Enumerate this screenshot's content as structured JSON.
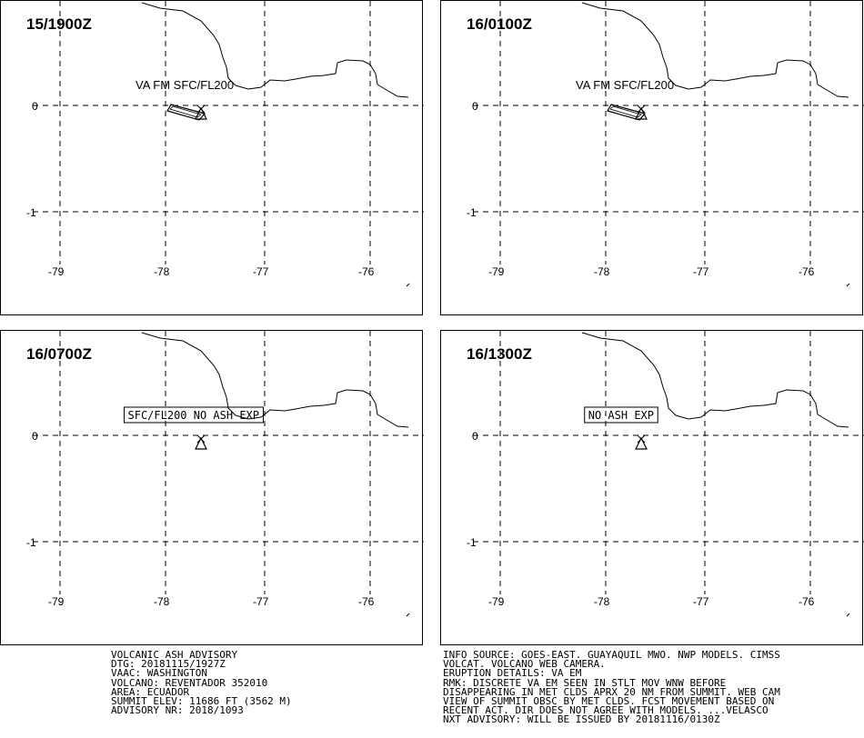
{
  "panels": [
    {
      "time": "15/1900Z",
      "label": "VA FM SFC/FL200",
      "label_boxed": false,
      "plume": true
    },
    {
      "time": "16/0100Z",
      "label": "VA FM SFC/FL200",
      "label_boxed": false,
      "plume": true
    },
    {
      "time": "16/0700Z",
      "label": "SFC/FL200 NO ASH EXP",
      "label_boxed": true,
      "plume": false
    },
    {
      "time": "16/1300Z",
      "label": "NO ASH EXP",
      "label_boxed": true,
      "plume": false
    }
  ],
  "axes": {
    "lon_ticks": [
      "-79",
      "-78",
      "-77",
      "-76"
    ],
    "lat_ticks": [
      "0",
      "-1"
    ]
  },
  "advisory_left": [
    "VOLCANIC ASH ADVISORY",
    "DTG: 20181115/1927Z",
    "VAAC: WASHINGTON",
    "VOLCANO: REVENTADOR 352010",
    "AREA: ECUADOR",
    "SUMMIT ELEV: 11686 FT (3562 M)",
    "ADVISORY NR: 2018/1093"
  ],
  "advisory_right": [
    "INFO SOURCE: GOES-EAST. GUAYAQUIL MWO. NWP MODELS. CIMSS",
    "VOLCAT. VOLCANO WEB CAMERA.",
    "ERUPTION DETAILS: VA EM",
    "RMK: DISCRETE VA EM SEEN IN STLT MOV WNW BEFORE",
    "DISAPPEARING IN MET CLDS APRX 20 NM FROM SUMMIT. WEB CAM",
    "VIEW OF SUMMIT OBSC BY MET CLDS. FCST MOVEMENT BASED ON",
    "RECENT ACT. DIR DOES NOT AGREE WITH MODELS. ...VELASCO",
    "NXT ADVISORY: WILL BE ISSUED BY 20181116/0130Z"
  ]
}
